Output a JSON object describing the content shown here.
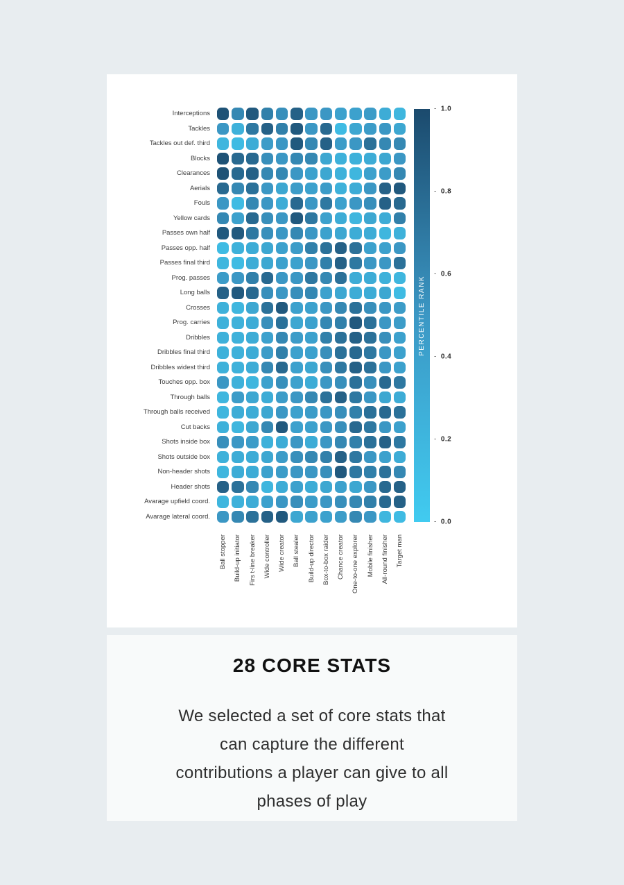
{
  "chart_data": {
    "type": "heatmap",
    "title": "",
    "rows": [
      "Interceptions",
      "Tackles",
      "Tackles out def. third",
      "Blocks",
      "Clearances",
      "Aerials",
      "Fouls",
      "Yellow cards",
      "Passes own half",
      "Passes opp. half",
      "Passes final third",
      "Prog. passes",
      "Long balls",
      "Crosses",
      "Prog. carries",
      "Dribbles",
      "Dribbles final third",
      "Dribbles widest third",
      "Touches opp. box",
      "Through balls",
      "Through balls received",
      "Cut backs",
      "Shots inside box",
      "Shots outside box",
      "Non-header shots",
      "Header shots",
      "Avarage upfield coord.",
      "Avarage lateral coord."
    ],
    "columns": [
      "Ball stopper",
      "Build-up initiator",
      "Firs t-line breaker",
      "Wide controller",
      "Wide creator",
      "Ball stealer",
      "Build-up director",
      "Box-to-box raider",
      "Chance creator",
      "One-to-one explorer",
      "Mobile finisher",
      "All-round finisher",
      "Target man"
    ],
    "values": [
      [
        0.95,
        0.6,
        0.9,
        0.65,
        0.55,
        0.85,
        0.5,
        0.5,
        0.4,
        0.4,
        0.45,
        0.3,
        0.2
      ],
      [
        0.5,
        0.25,
        0.7,
        0.85,
        0.65,
        0.9,
        0.5,
        0.8,
        0.15,
        0.35,
        0.45,
        0.5,
        0.35
      ],
      [
        0.2,
        0.15,
        0.3,
        0.45,
        0.5,
        0.9,
        0.6,
        0.85,
        0.45,
        0.5,
        0.75,
        0.6,
        0.6
      ],
      [
        0.95,
        0.8,
        0.8,
        0.55,
        0.5,
        0.6,
        0.6,
        0.35,
        0.25,
        0.25,
        0.3,
        0.35,
        0.5
      ],
      [
        0.95,
        0.8,
        0.85,
        0.6,
        0.6,
        0.5,
        0.4,
        0.35,
        0.25,
        0.2,
        0.4,
        0.45,
        0.6
      ],
      [
        0.8,
        0.6,
        0.75,
        0.5,
        0.35,
        0.45,
        0.4,
        0.45,
        0.25,
        0.3,
        0.5,
        0.85,
        0.9
      ],
      [
        0.5,
        0.15,
        0.6,
        0.5,
        0.3,
        0.8,
        0.5,
        0.7,
        0.4,
        0.5,
        0.55,
        0.85,
        0.8
      ],
      [
        0.6,
        0.4,
        0.8,
        0.55,
        0.5,
        0.9,
        0.7,
        0.4,
        0.3,
        0.2,
        0.35,
        0.3,
        0.65
      ],
      [
        0.9,
        0.9,
        0.7,
        0.55,
        0.5,
        0.6,
        0.5,
        0.4,
        0.35,
        0.3,
        0.3,
        0.2,
        0.25
      ],
      [
        0.15,
        0.25,
        0.3,
        0.35,
        0.4,
        0.45,
        0.65,
        0.75,
        0.85,
        0.75,
        0.4,
        0.4,
        0.5
      ],
      [
        0.2,
        0.15,
        0.3,
        0.35,
        0.4,
        0.4,
        0.5,
        0.65,
        0.85,
        0.7,
        0.5,
        0.5,
        0.75
      ],
      [
        0.45,
        0.5,
        0.65,
        0.8,
        0.5,
        0.5,
        0.7,
        0.6,
        0.75,
        0.3,
        0.3,
        0.25,
        0.2
      ],
      [
        0.85,
        0.9,
        0.8,
        0.55,
        0.5,
        0.55,
        0.6,
        0.4,
        0.35,
        0.3,
        0.3,
        0.35,
        0.15
      ],
      [
        0.25,
        0.2,
        0.35,
        0.75,
        0.9,
        0.4,
        0.4,
        0.5,
        0.6,
        0.75,
        0.55,
        0.5,
        0.45
      ],
      [
        0.25,
        0.25,
        0.3,
        0.55,
        0.75,
        0.35,
        0.4,
        0.6,
        0.65,
        0.9,
        0.75,
        0.5,
        0.45
      ],
      [
        0.25,
        0.25,
        0.3,
        0.4,
        0.6,
        0.45,
        0.4,
        0.65,
        0.75,
        0.85,
        0.75,
        0.55,
        0.4
      ],
      [
        0.25,
        0.25,
        0.3,
        0.45,
        0.65,
        0.4,
        0.4,
        0.55,
        0.75,
        0.8,
        0.7,
        0.5,
        0.4
      ],
      [
        0.25,
        0.25,
        0.3,
        0.6,
        0.8,
        0.4,
        0.35,
        0.55,
        0.7,
        0.85,
        0.75,
        0.5,
        0.4
      ],
      [
        0.5,
        0.25,
        0.2,
        0.4,
        0.55,
        0.4,
        0.3,
        0.5,
        0.55,
        0.75,
        0.55,
        0.8,
        0.7
      ],
      [
        0.2,
        0.45,
        0.35,
        0.3,
        0.45,
        0.5,
        0.6,
        0.75,
        0.85,
        0.7,
        0.5,
        0.35,
        0.3
      ],
      [
        0.2,
        0.3,
        0.3,
        0.35,
        0.5,
        0.4,
        0.45,
        0.5,
        0.55,
        0.65,
        0.75,
        0.8,
        0.75
      ],
      [
        0.25,
        0.2,
        0.35,
        0.6,
        0.9,
        0.4,
        0.4,
        0.5,
        0.55,
        0.8,
        0.7,
        0.5,
        0.4
      ],
      [
        0.55,
        0.5,
        0.45,
        0.25,
        0.3,
        0.5,
        0.3,
        0.5,
        0.6,
        0.65,
        0.75,
        0.85,
        0.7
      ],
      [
        0.25,
        0.3,
        0.3,
        0.35,
        0.45,
        0.55,
        0.6,
        0.65,
        0.85,
        0.7,
        0.5,
        0.4,
        0.3
      ],
      [
        0.2,
        0.3,
        0.3,
        0.4,
        0.45,
        0.5,
        0.5,
        0.55,
        0.9,
        0.7,
        0.65,
        0.75,
        0.6
      ],
      [
        0.85,
        0.75,
        0.6,
        0.2,
        0.3,
        0.4,
        0.3,
        0.35,
        0.4,
        0.35,
        0.5,
        0.8,
        0.85
      ],
      [
        0.2,
        0.25,
        0.3,
        0.4,
        0.5,
        0.55,
        0.45,
        0.5,
        0.55,
        0.6,
        0.65,
        0.8,
        0.85
      ],
      [
        0.5,
        0.6,
        0.75,
        0.85,
        0.9,
        0.35,
        0.4,
        0.4,
        0.45,
        0.6,
        0.5,
        0.2,
        0.15
      ]
    ],
    "colorbar": {
      "label": "PERCENTILE RANK",
      "ticks": [
        "1.0",
        "0.8",
        "0.6",
        "0.4",
        "0.2",
        "0.0"
      ],
      "range": [
        0.0,
        1.0
      ]
    },
    "colormap_stops": [
      {
        "value": 0.0,
        "color": "#41cbf0"
      },
      {
        "value": 0.5,
        "color": "#3b97c4"
      },
      {
        "value": 1.0,
        "color": "#1b4a6d"
      }
    ],
    "legend_position": "right",
    "grid": false
  },
  "text_section": {
    "title": "28 CORE STATS",
    "lines": [
      "We selected a set of core stats that",
      "can capture the different",
      "contributions a player can give to all",
      "phases of play"
    ]
  },
  "colors": {
    "page_background": "#e8edf0",
    "chart_panel_background": "#ffffff",
    "text_panel_background": "#f8fafa",
    "label_text": "#3c3c3c",
    "tick_text": "#2b2b2b",
    "title_text": "#111111",
    "body_text": "#2e2e2e",
    "colorbar_label_text": "#ffffff"
  }
}
